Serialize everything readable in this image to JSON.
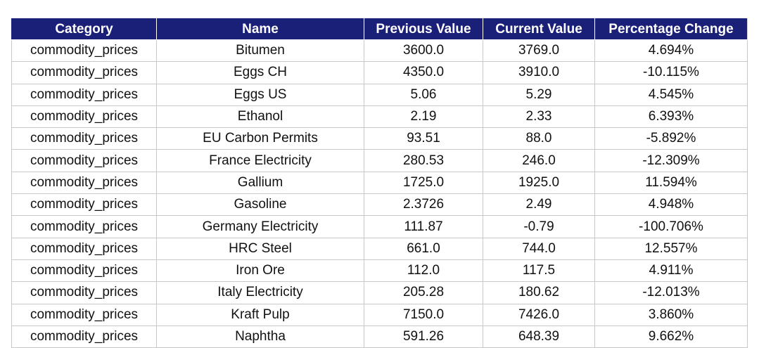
{
  "table": {
    "headers": [
      "Category",
      "Name",
      "Previous Value",
      "Current Value",
      "Percentage Change"
    ],
    "rows": [
      [
        "commodity_prices",
        "Bitumen",
        "3600.0",
        "3769.0",
        "4.694%"
      ],
      [
        "commodity_prices",
        "Eggs CH",
        "4350.0",
        "3910.0",
        "-10.115%"
      ],
      [
        "commodity_prices",
        "Eggs US",
        "5.06",
        "5.29",
        "4.545%"
      ],
      [
        "commodity_prices",
        "Ethanol",
        "2.19",
        "2.33",
        "6.393%"
      ],
      [
        "commodity_prices",
        "EU Carbon Permits",
        "93.51",
        "88.0",
        "-5.892%"
      ],
      [
        "commodity_prices",
        "France Electricity",
        "280.53",
        "246.0",
        "-12.309%"
      ],
      [
        "commodity_prices",
        "Gallium",
        "1725.0",
        "1925.0",
        "11.594%"
      ],
      [
        "commodity_prices",
        "Gasoline",
        "2.3726",
        "2.49",
        "4.948%"
      ],
      [
        "commodity_prices",
        "Germany Electricity",
        "111.87",
        "-0.79",
        "-100.706%"
      ],
      [
        "commodity_prices",
        "HRC Steel",
        "661.0",
        "744.0",
        "12.557%"
      ],
      [
        "commodity_prices",
        "Iron Ore",
        "112.0",
        "117.5",
        "4.911%"
      ],
      [
        "commodity_prices",
        "Italy Electricity",
        "205.28",
        "180.62",
        "-12.013%"
      ],
      [
        "commodity_prices",
        "Kraft Pulp",
        "7150.0",
        "7426.0",
        "3.860%"
      ],
      [
        "commodity_prices",
        "Naphtha",
        "591.26",
        "648.39",
        "9.662%"
      ]
    ]
  },
  "colors": {
    "header_background": "#1a1f78",
    "header_text": "#ffffff",
    "grid_lines": "#c8c8c8"
  }
}
